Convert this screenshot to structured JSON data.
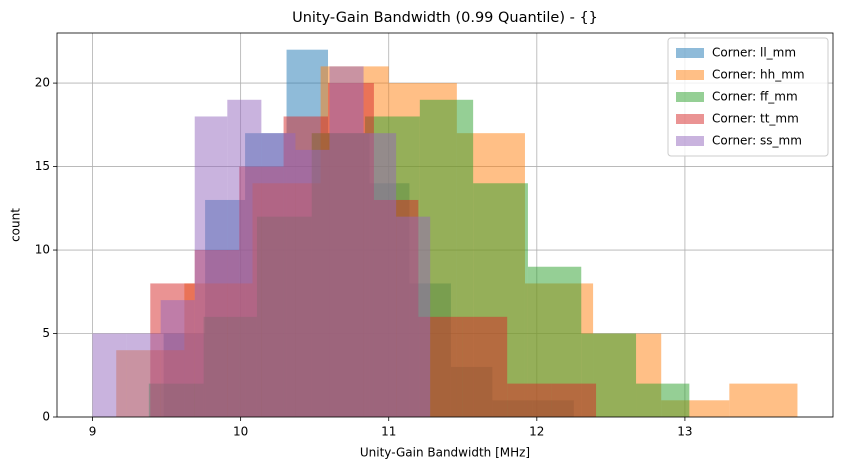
{
  "chart_data": {
    "type": "histogram",
    "title": "Unity-Gain Bandwidth (0.99 Quantile) - {}",
    "x_label": "Unity-Gain Bandwidth [MHz]",
    "y_label": "count",
    "xlim": [
      8.76,
      14.0
    ],
    "ylim": [
      0,
      23
    ],
    "xticks": [
      9,
      10,
      11,
      12,
      13
    ],
    "yticks": [
      0,
      5,
      10,
      15,
      20
    ],
    "grid": true,
    "legend": "upper right",
    "alpha": 0.5,
    "series": [
      {
        "name": "Corner: ll_mm",
        "color": "#1f77b4",
        "bins": [
          9.48,
          9.76,
          10.03,
          10.31,
          10.59,
          10.87,
          11.14,
          11.42,
          11.7,
          11.97,
          12.25
        ],
        "values": [
          5,
          13,
          17,
          22,
          17,
          14,
          8,
          3,
          1,
          1
        ]
      },
      {
        "name": "Corner: hh_mm",
        "color": "#ff7f0e",
        "bins": [
          9.16,
          9.62,
          10.08,
          10.54,
          11.0,
          11.46,
          11.92,
          12.38,
          12.84,
          13.3,
          13.76
        ],
        "values": [
          4,
          8,
          14,
          21,
          20,
          17,
          8,
          5,
          1,
          2
        ]
      },
      {
        "name": "Corner: ff_mm",
        "color": "#2ca02c",
        "bins": [
          9.38,
          9.75,
          10.11,
          10.48,
          10.84,
          11.21,
          11.57,
          11.94,
          12.3,
          12.67,
          13.03
        ],
        "values": [
          2,
          6,
          12,
          17,
          18,
          19,
          14,
          9,
          5,
          2
        ]
      },
      {
        "name": "Corner: tt_mm",
        "color": "#d62728",
        "bins": [
          9.39,
          9.69,
          9.99,
          10.29,
          10.59,
          10.9,
          11.2,
          11.5,
          11.8,
          12.1,
          12.4
        ],
        "values": [
          8,
          10,
          15,
          18,
          20,
          13,
          6,
          6,
          2,
          2
        ]
      },
      {
        "name": "Corner: ss_mm",
        "color": "#9467bd",
        "bins": [
          9.0,
          9.23,
          9.46,
          9.69,
          9.91,
          10.14,
          10.37,
          10.6,
          10.83,
          11.05,
          11.28
        ],
        "values": [
          5,
          5,
          7,
          18,
          19,
          17,
          16,
          21,
          17,
          12
        ]
      }
    ]
  }
}
